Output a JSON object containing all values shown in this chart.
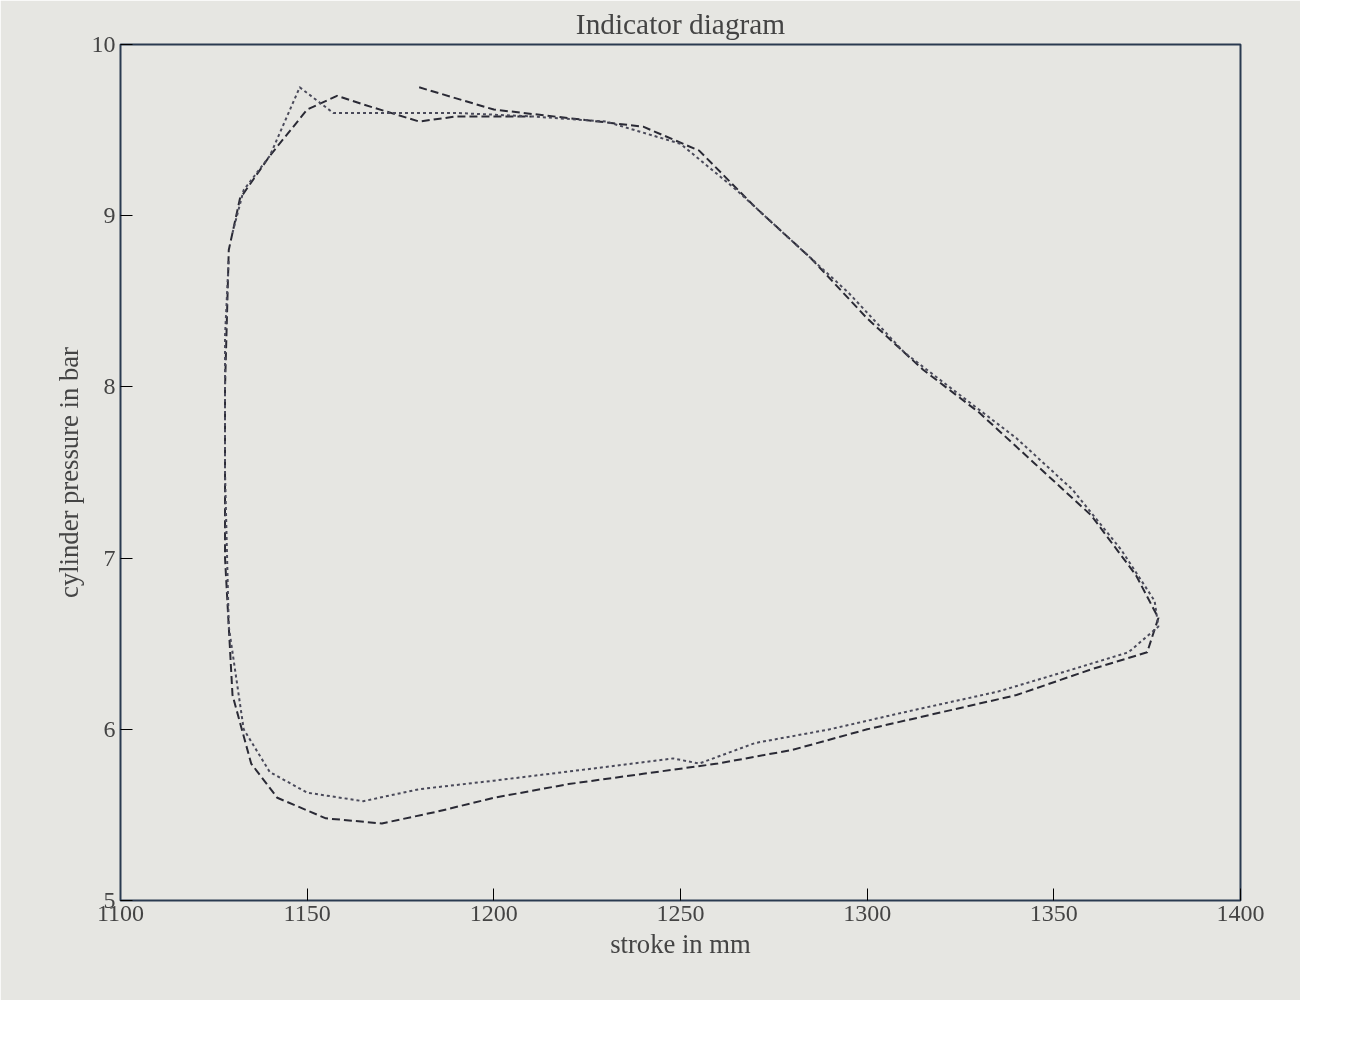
{
  "chart_data": {
    "type": "line",
    "title": "Indicator diagram",
    "xlabel": "stroke in mm",
    "ylabel": "cylinder pressure in bar",
    "xlim": [
      1100,
      1400
    ],
    "xticks": [
      1100,
      1150,
      1200,
      1250,
      1300,
      1350,
      1400
    ],
    "ylim": [
      5,
      10
    ],
    "yticks": [
      5,
      6,
      7,
      8,
      9,
      10
    ],
    "grid": false,
    "marker": "none",
    "series": [
      {
        "color": "#2a2a35",
        "line_style": "dashed",
        "x": [
          1180,
          1200,
          1220,
          1240,
          1255,
          1270,
          1285,
          1300,
          1315,
          1330,
          1345,
          1360,
          1372,
          1378,
          1375,
          1360,
          1340,
          1320,
          1300,
          1280,
          1260,
          1240,
          1220,
          1200,
          1185,
          1170,
          1155,
          1142,
          1135,
          1130,
          1128,
          1128,
          1129,
          1132,
          1140,
          1150,
          1158,
          1165,
          1180,
          1190,
          1210
        ],
        "values": [
          9.75,
          9.62,
          9.57,
          9.52,
          9.38,
          9.05,
          8.75,
          8.4,
          8.1,
          7.85,
          7.55,
          7.25,
          6.9,
          6.65,
          6.45,
          6.35,
          6.2,
          6.1,
          6.0,
          5.88,
          5.8,
          5.74,
          5.68,
          5.6,
          5.52,
          5.45,
          5.48,
          5.6,
          5.8,
          6.2,
          7.0,
          8.0,
          8.8,
          9.1,
          9.35,
          9.62,
          9.7,
          9.65,
          9.55,
          9.58,
          9.58
        ]
      },
      {
        "color": "#4a4a5a",
        "line_style": "dotted",
        "x": [
          1130,
          1133,
          1140,
          1148,
          1157,
          1170,
          1190,
          1210,
          1230,
          1250,
          1265,
          1280,
          1295,
          1310,
          1325,
          1340,
          1355,
          1368,
          1377,
          1378,
          1370,
          1355,
          1335,
          1310,
          1290,
          1270,
          1255,
          1248,
          1230,
          1200,
          1180,
          1165,
          1150,
          1140,
          1133,
          1129,
          1128,
          1128,
          1129
        ],
        "values": [
          8.9,
          9.15,
          9.35,
          9.75,
          9.6,
          9.6,
          9.6,
          9.58,
          9.55,
          9.42,
          9.15,
          8.85,
          8.55,
          8.2,
          7.95,
          7.7,
          7.4,
          7.05,
          6.75,
          6.6,
          6.45,
          6.35,
          6.22,
          6.1,
          6.0,
          5.92,
          5.8,
          5.83,
          5.78,
          5.7,
          5.65,
          5.58,
          5.63,
          5.75,
          6.0,
          6.6,
          7.5,
          8.3,
          8.75
        ]
      }
    ]
  }
}
